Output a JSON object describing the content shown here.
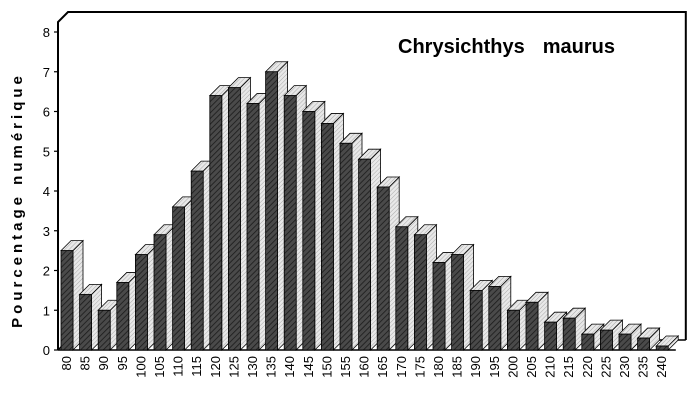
{
  "chart_data": {
    "type": "bar",
    "title_species": "Chrysichthys",
    "title_epithet": "maurus",
    "xlabel": "",
    "ylabel": "Pourcentage numérique",
    "ylim": [
      0,
      8
    ],
    "yticks": [
      "0",
      "1",
      "2",
      "3",
      "4",
      "5",
      "6",
      "7",
      "8"
    ],
    "grid": false,
    "categories": [
      "80",
      "85",
      "90",
      "95",
      "100",
      "105",
      "110",
      "115",
      "120",
      "125",
      "130",
      "135",
      "140",
      "145",
      "150",
      "155",
      "160",
      "165",
      "170",
      "175",
      "180",
      "185",
      "190",
      "195",
      "200",
      "205",
      "210",
      "215",
      "220",
      "225",
      "230",
      "235",
      "240"
    ],
    "values": [
      2.5,
      1.4,
      1.0,
      1.7,
      2.4,
      2.9,
      3.6,
      4.5,
      6.4,
      6.6,
      6.2,
      7.0,
      6.4,
      6.0,
      5.7,
      5.2,
      4.8,
      4.1,
      3.1,
      2.9,
      2.2,
      2.4,
      1.5,
      1.6,
      1.0,
      1.2,
      0.7,
      0.8,
      0.4,
      0.5,
      0.4,
      0.3,
      0.1
    ],
    "colors": {
      "bar_front": "#3a3a3a",
      "bar_top": "#e6e6e6",
      "bar_side": "#bdbdbd",
      "frame": "#000000"
    }
  }
}
